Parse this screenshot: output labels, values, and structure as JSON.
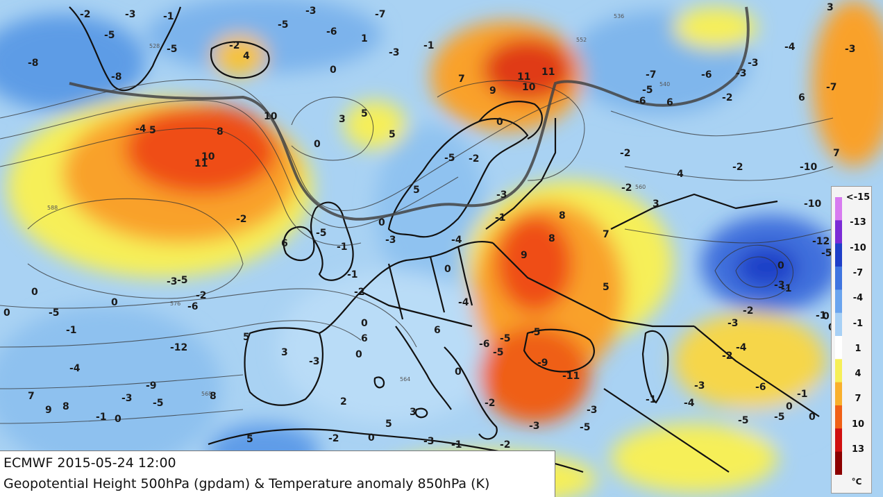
{
  "title": {
    "line1": "ECMWF 2015-05-24 12:00",
    "line2": "Geopotential Height 500hPa (gpdam) & Temperature anomaly 850hPa (K)"
  },
  "legend": {
    "ticks": [
      "<-15",
      "-13",
      "-10",
      "-7",
      "-4",
      "-1",
      "1",
      "4",
      "7",
      "10",
      "13"
    ],
    "unit": "°C",
    "colors": [
      "#d77bf0",
      "#7b2bd6",
      "#1f3fc8",
      "#3f74e0",
      "#6aa4ee",
      "#a7d0f5",
      "#ffffff",
      "#f6ef58",
      "#f9b02c",
      "#f06016",
      "#d01010",
      "#8c0000"
    ]
  },
  "colors": {
    "ocean_base": "#9ec9ef",
    "warm_light": "#f6ef58",
    "warm_mid": "#f9a12a",
    "warm_hot": "#ef4e16",
    "cold_light": "#b9dcf7",
    "cold_mid": "#6ea9ea",
    "cold_deep": "#2b55cf"
  },
  "map": {
    "height_contour_labels": [
      "588",
      "576",
      "568",
      "564",
      "560",
      "552",
      "540",
      "536",
      "528"
    ],
    "anomaly_labels": [
      "-8",
      "-2",
      "-5",
      "-3",
      "-1",
      "-8",
      "-5",
      "-2",
      "4",
      "-5",
      "-3",
      "-6",
      "1",
      "-3",
      "-1",
      "0",
      "-7",
      "-4",
      "5",
      "8",
      "10",
      "11",
      "10",
      "5",
      "5",
      "3",
      "0",
      "-2",
      "6",
      "-5",
      "-1",
      "-1",
      "-2",
      "0",
      "-3",
      "5",
      "7",
      "9",
      "11",
      "11",
      "10",
      "-5",
      "-2",
      "-3",
      "-1",
      "-4",
      "0",
      "0",
      "-7",
      "-5",
      "-6",
      "-6",
      "-3",
      "-2",
      "-3",
      "6",
      "3",
      "-3",
      "-7",
      "-4",
      "7",
      "4",
      "6",
      "8",
      "8",
      "9",
      "7",
      "5",
      "-2",
      "-2",
      "-2",
      "3",
      "-4",
      "-6",
      "-5",
      "-5",
      "-5",
      "-9",
      "-11",
      "-10",
      "-12",
      "-10",
      "-5",
      "0",
      "-1",
      "-2",
      "-3",
      "-4",
      "-2",
      "-1",
      "0",
      "0",
      "-3",
      "-6",
      "-5",
      "-5",
      "0",
      "-1",
      "0",
      "-3",
      "-4",
      "-1",
      "-3",
      "-5",
      "0",
      "-5",
      "0",
      "-1",
      "0",
      "-3",
      "-5",
      "-2",
      "-6",
      "-12",
      "-9",
      "-5",
      "-3",
      "-1",
      "0",
      "-4",
      "7",
      "9",
      "8",
      "8",
      "5",
      "3",
      "-3",
      "0",
      "2",
      "0",
      "6",
      "5",
      "-2",
      "0",
      "5",
      "3",
      "6",
      "0",
      "-3",
      "-1",
      "-2",
      "-2",
      "-3"
    ]
  }
}
